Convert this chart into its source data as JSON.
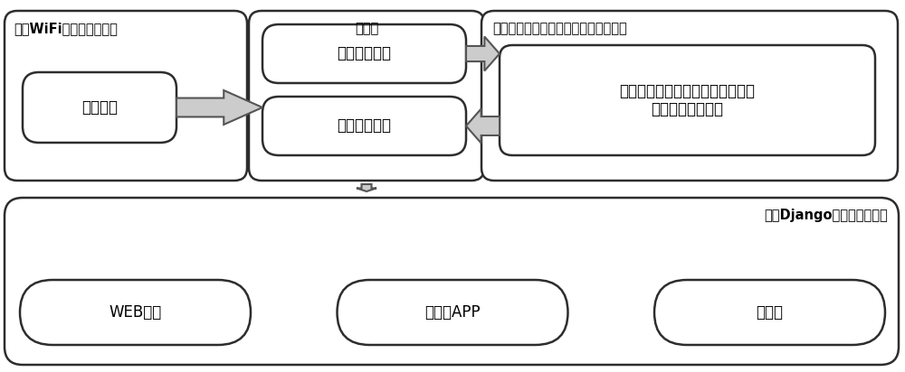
{
  "bg_color": "#ffffff",
  "border_color": "#2d2d2d",
  "text_color": "#000000",
  "top_section": {
    "box1_label": "基于WiFi的无线传感节点",
    "box1_inner_label": "定子电流",
    "box2_label": "数据库",
    "box2_inner1_label": "原始数据采集",
    "box2_inner2_label": "结果数据存储",
    "box3_label": "基于深度学习的感应电机故障诊断算法",
    "box3_inner_label": "基于门控循环神经网络的感应电机\n故障诊断算法模块"
  },
  "bottom_section": {
    "title": "基于Django框架的数据展示",
    "item1": "WEB发布",
    "item2": "移动端APP",
    "item3": "浏览器"
  }
}
